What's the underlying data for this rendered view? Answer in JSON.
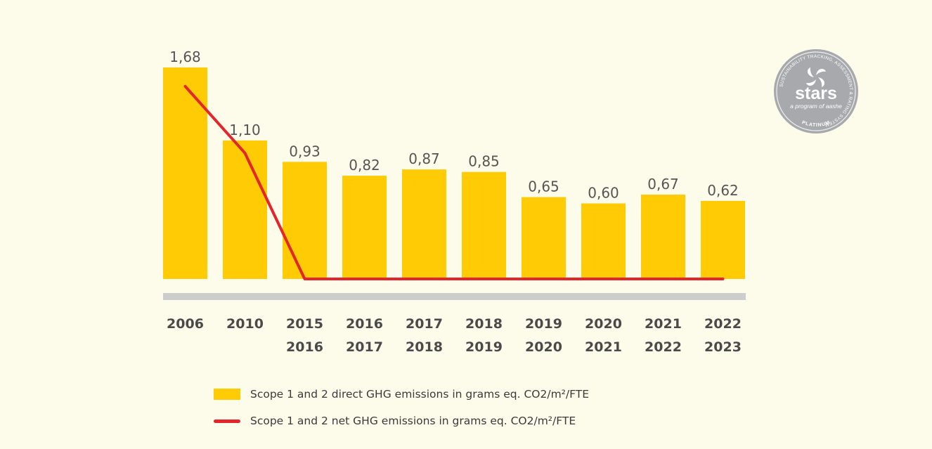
{
  "chart_data": {
    "type": "bar",
    "categories": [
      [
        "2006"
      ],
      [
        "2010"
      ],
      [
        "2015",
        "2016"
      ],
      [
        "2016",
        "2017"
      ],
      [
        "2017",
        "2018"
      ],
      [
        "2018",
        "2019"
      ],
      [
        "2019",
        "2020"
      ],
      [
        "2020",
        "2021"
      ],
      [
        "2021",
        "2022"
      ],
      [
        "2022",
        "2023"
      ]
    ],
    "series": [
      {
        "name": "Scope 1 and 2 direct GHG emissions in grams eq. CO2/m²/FTE",
        "kind": "bar",
        "values": [
          1.68,
          1.1,
          0.93,
          0.82,
          0.87,
          0.85,
          0.65,
          0.6,
          0.67,
          0.62
        ],
        "labels": [
          "1,68",
          "1,10",
          "0,93",
          "0,82",
          "0,87",
          "0,85",
          "0,65",
          "0,60",
          "0,67",
          "0,62"
        ],
        "color": "#ffcb05"
      },
      {
        "name": "Scope 1 and 2 net GHG emissions in grams eq. CO2/m²/FTE",
        "kind": "line",
        "values": [
          1.53,
          1.0,
          0,
          0,
          0,
          0,
          0,
          0,
          0,
          0
        ],
        "color": "#e3262b"
      }
    ],
    "ylim": [
      0,
      1.68
    ],
    "grid": false,
    "legend_position": "bottom-center"
  },
  "badge": {
    "name": "stars",
    "tagline": "a program of aashe",
    "ring_text": "SUSTAINABILITY TRACKING, ASSESSMENT & RATING SYSTEM",
    "level": "PLATINUM",
    "color": "#a7a9ac"
  }
}
